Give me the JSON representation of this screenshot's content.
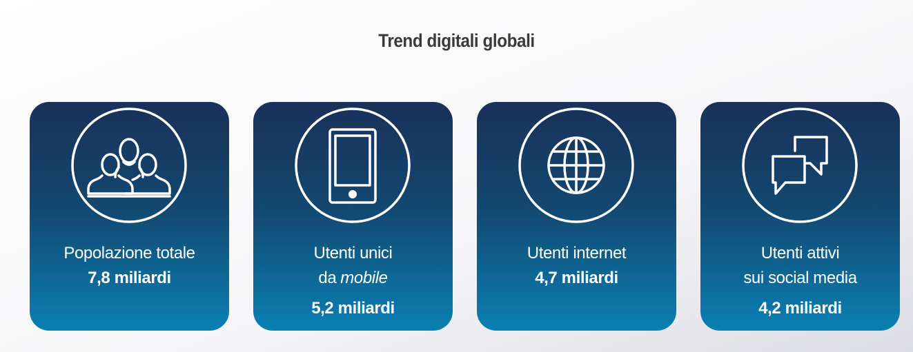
{
  "title": "Trend digitali globali",
  "cards": [
    {
      "lines": [
        [
          {
            "text": "Popolazione totale"
          }
        ]
      ],
      "value": "7,8 miliardi"
    },
    {
      "lines": [
        [
          {
            "text": "Utenti unici"
          }
        ],
        [
          {
            "text": "da"
          },
          {
            "text": "mobile",
            "italic": true
          }
        ]
      ],
      "value": "5,2 miliardi"
    },
    {
      "lines": [
        [
          {
            "text": "Utenti internet"
          }
        ]
      ],
      "value": "4,7 miliardi"
    },
    {
      "lines": [
        [
          {
            "text": "Utenti attivi"
          }
        ],
        [
          {
            "text": "sui social media"
          }
        ]
      ],
      "value": "4,2 miliardi"
    }
  ]
}
